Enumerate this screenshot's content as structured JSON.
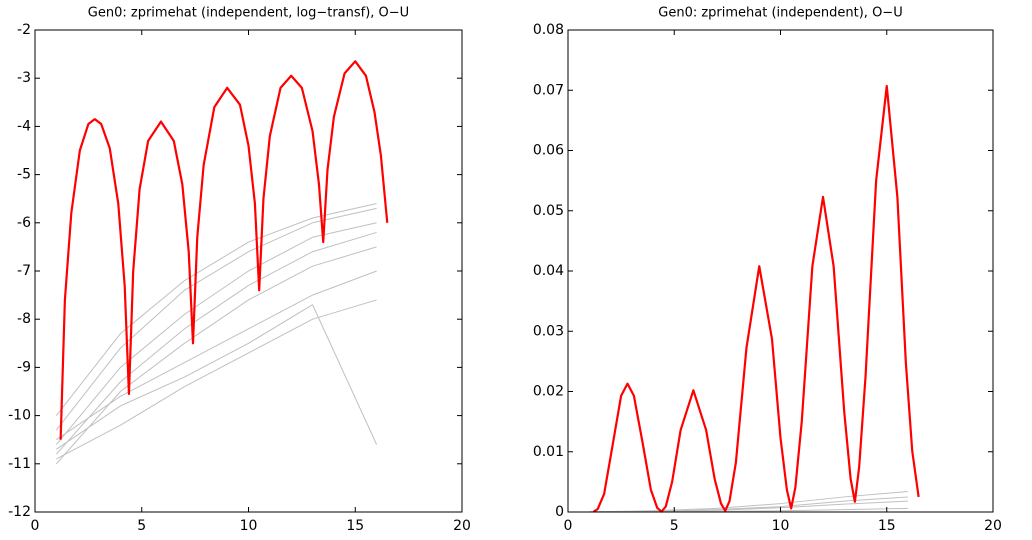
{
  "chart_data": [
    {
      "type": "line",
      "title": "Gen0: zprimehat (independent, log−transf), O−U",
      "xlim": [
        0,
        20
      ],
      "xticks": [
        0,
        5,
        10,
        15,
        20
      ],
      "ylim": [
        -12,
        -2
      ],
      "yticks": [
        -12,
        -11,
        -10,
        -9,
        -8,
        -7,
        -6,
        -5,
        -4,
        -3,
        -2
      ],
      "series": [
        {
          "color": "#c0c0c0",
          "x": [
            1,
            4,
            7,
            10,
            13,
            16
          ],
          "values": [
            -10.3,
            -8.6,
            -7.4,
            -6.6,
            -6.0,
            -5.7
          ]
        },
        {
          "color": "#c0c0c0",
          "x": [
            1,
            4,
            7,
            10,
            13,
            16
          ],
          "values": [
            -10.6,
            -9.0,
            -7.9,
            -7.0,
            -6.3,
            -6.0
          ]
        },
        {
          "color": "#c0c0c0",
          "x": [
            1,
            4,
            7,
            10,
            13,
            16
          ],
          "values": [
            -10.8,
            -9.3,
            -8.2,
            -7.3,
            -6.6,
            -6.2
          ]
        },
        {
          "color": "#c0c0c0",
          "x": [
            1,
            4,
            7,
            10,
            13,
            16
          ],
          "values": [
            -11.0,
            -9.5,
            -8.5,
            -7.6,
            -6.9,
            -6.5
          ]
        },
        {
          "color": "#c0c0c0",
          "x": [
            1,
            4,
            7,
            10,
            13,
            16
          ],
          "values": [
            -10.5,
            -9.6,
            -8.9,
            -8.2,
            -7.5,
            -7.0
          ]
        },
        {
          "color": "#c0c0c0",
          "x": [
            1,
            4,
            7,
            10,
            13,
            16
          ],
          "values": [
            -10.9,
            -10.2,
            -9.4,
            -8.7,
            -8.0,
            -7.6
          ]
        },
        {
          "color": "#c0c0c0",
          "x": [
            1,
            4,
            7,
            10,
            13,
            16
          ],
          "values": [
            -10.7,
            -9.8,
            -9.2,
            -8.5,
            -7.7,
            -10.6
          ]
        },
        {
          "color": "#c0c0c0",
          "x": [
            1,
            4,
            7,
            10,
            13,
            16
          ],
          "values": [
            -10.0,
            -8.3,
            -7.2,
            -6.4,
            -5.9,
            -5.6
          ]
        },
        {
          "color": "#ff0000",
          "x": [
            1.2,
            1.4,
            1.7,
            2.1,
            2.5,
            2.8,
            3.1,
            3.5,
            3.9,
            4.2,
            4.4,
            4.6,
            4.9,
            5.3,
            5.9,
            6.5,
            6.9,
            7.2,
            7.4,
            7.6,
            7.9,
            8.4,
            9.0,
            9.6,
            10.0,
            10.3,
            10.5,
            10.7,
            11.0,
            11.5,
            12.0,
            12.5,
            13.0,
            13.3,
            13.5,
            13.7,
            14.0,
            14.5,
            15.0,
            15.5,
            15.9,
            16.2,
            16.5
          ],
          "values": [
            -10.5,
            -7.6,
            -5.8,
            -4.5,
            -3.95,
            -3.85,
            -3.95,
            -4.45,
            -5.6,
            -7.3,
            -9.55,
            -7.0,
            -5.3,
            -4.3,
            -3.9,
            -4.3,
            -5.2,
            -6.6,
            -8.5,
            -6.3,
            -4.8,
            -3.6,
            -3.2,
            -3.55,
            -4.4,
            -5.6,
            -7.4,
            -5.5,
            -4.2,
            -3.2,
            -2.95,
            -3.2,
            -4.1,
            -5.2,
            -6.4,
            -4.9,
            -3.8,
            -2.9,
            -2.65,
            -2.95,
            -3.7,
            -4.6,
            -6.0
          ]
        }
      ]
    },
    {
      "type": "line",
      "title": "Gen0: zprimehat (independent), O−U",
      "xlim": [
        0,
        20
      ],
      "xticks": [
        0,
        5,
        10,
        15,
        20
      ],
      "ylim": [
        0,
        0.08
      ],
      "yticks": [
        0,
        0.01,
        0.02,
        0.03,
        0.04,
        0.05,
        0.06,
        0.07,
        0.08
      ],
      "series": [
        {
          "color": "#c0c0c0",
          "x": [
            1,
            4,
            7,
            10,
            13,
            16
          ],
          "values": [
            3e-05,
            0.0002,
            0.0006,
            0.0014,
            0.0025,
            0.0034
          ]
        },
        {
          "color": "#c0c0c0",
          "x": [
            1,
            4,
            7,
            10,
            13,
            16
          ],
          "values": [
            2e-05,
            0.0001,
            0.0004,
            0.0009,
            0.0018,
            0.0025
          ]
        },
        {
          "color": "#c0c0c0",
          "x": [
            1,
            4,
            7,
            10,
            13,
            16
          ],
          "values": [
            2e-05,
            8e-05,
            0.0003,
            0.0007,
            0.0013,
            0.0018
          ]
        },
        {
          "color": "#c0c0c0",
          "x": [
            1,
            4,
            7,
            10,
            13,
            16
          ],
          "values": [
            2e-05,
            5e-05,
            0.0001,
            0.0002,
            0.0004,
            0.0006
          ]
        },
        {
          "color": "#ff0000",
          "x": [
            1.2,
            1.4,
            1.7,
            2.1,
            2.5,
            2.8,
            3.1,
            3.5,
            3.9,
            4.2,
            4.4,
            4.6,
            4.9,
            5.3,
            5.9,
            6.5,
            6.9,
            7.2,
            7.4,
            7.6,
            7.9,
            8.4,
            9.0,
            9.6,
            10.0,
            10.3,
            10.5,
            10.7,
            11.0,
            11.5,
            12.0,
            12.5,
            13.0,
            13.3,
            13.5,
            13.7,
            14.0,
            14.5,
            15.0,
            15.5,
            15.9,
            16.2,
            16.5
          ],
          "values": [
            3e-05,
            0.0005,
            0.003,
            0.0111,
            0.0193,
            0.0213,
            0.0193,
            0.0117,
            0.0037,
            0.00067,
            7e-05,
            0.0009,
            0.005,
            0.0136,
            0.0202,
            0.0136,
            0.0055,
            0.0014,
            0.0002,
            0.0018,
            0.0082,
            0.0273,
            0.0408,
            0.0287,
            0.0123,
            0.0037,
            0.0006,
            0.0041,
            0.015,
            0.0408,
            0.0523,
            0.0408,
            0.0166,
            0.0055,
            0.0017,
            0.0074,
            0.0224,
            0.055,
            0.0707,
            0.0523,
            0.0247,
            0.0101,
            0.0025
          ]
        }
      ]
    }
  ]
}
